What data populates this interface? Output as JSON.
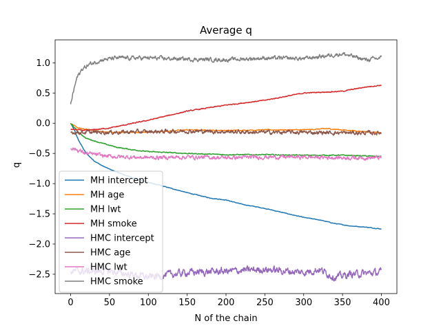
{
  "chart_data": {
    "type": "line",
    "title": "Average q",
    "xlabel": "N of the chain",
    "ylabel": "q",
    "xlim": [
      -20,
      420
    ],
    "ylim": [
      -2.82,
      1.38
    ],
    "xticks": [
      0,
      50,
      100,
      150,
      200,
      250,
      300,
      350,
      400
    ],
    "yticks": [
      -2.5,
      -2.0,
      -1.5,
      -1.0,
      -0.5,
      0.0,
      0.5,
      1.0
    ],
    "ytick_labels": [
      "−2.5",
      "−2.0",
      "−1.5",
      "−1.0",
      "−0.5",
      "0.0",
      "0.5",
      "1.0"
    ],
    "grid": false,
    "legend_position": "lower-left",
    "series": [
      {
        "name": "MH intercept",
        "color": "#1f77b4",
        "noise": 0.004,
        "points": [
          [
            0,
            0.0
          ],
          [
            5,
            -0.12
          ],
          [
            10,
            -0.28
          ],
          [
            20,
            -0.5
          ],
          [
            30,
            -0.62
          ],
          [
            40,
            -0.7
          ],
          [
            50,
            -0.76
          ],
          [
            70,
            -0.86
          ],
          [
            100,
            -0.98
          ],
          [
            130,
            -1.08
          ],
          [
            150,
            -1.15
          ],
          [
            180,
            -1.24
          ],
          [
            200,
            -1.27
          ],
          [
            220,
            -1.34
          ],
          [
            250,
            -1.41
          ],
          [
            280,
            -1.5
          ],
          [
            300,
            -1.56
          ],
          [
            320,
            -1.6
          ],
          [
            340,
            -1.66
          ],
          [
            360,
            -1.7
          ],
          [
            380,
            -1.72
          ],
          [
            400,
            -1.75
          ]
        ]
      },
      {
        "name": "MH age",
        "color": "#ff7f0e",
        "noise": 0.006,
        "points": [
          [
            0,
            0.0
          ],
          [
            10,
            -0.08
          ],
          [
            30,
            -0.12
          ],
          [
            50,
            -0.15
          ],
          [
            100,
            -0.15
          ],
          [
            150,
            -0.11
          ],
          [
            200,
            -0.12
          ],
          [
            250,
            -0.11
          ],
          [
            300,
            -0.11
          ],
          [
            330,
            -0.09
          ],
          [
            360,
            -0.12
          ],
          [
            400,
            -0.16
          ]
        ]
      },
      {
        "name": "MH lwt",
        "color": "#2ca02c",
        "noise": 0.006,
        "points": [
          [
            0,
            0.0
          ],
          [
            10,
            -0.15
          ],
          [
            20,
            -0.25
          ],
          [
            40,
            -0.33
          ],
          [
            60,
            -0.4
          ],
          [
            80,
            -0.44
          ],
          [
            100,
            -0.47
          ],
          [
            150,
            -0.5
          ],
          [
            200,
            -0.52
          ],
          [
            250,
            -0.52
          ],
          [
            300,
            -0.53
          ],
          [
            350,
            -0.53
          ],
          [
            400,
            -0.55
          ]
        ]
      },
      {
        "name": "MH smoke",
        "color": "#d62728",
        "noise": 0.006,
        "points": [
          [
            0,
            -0.1
          ],
          [
            20,
            -0.12
          ],
          [
            50,
            -0.08
          ],
          [
            100,
            0.05
          ],
          [
            150,
            0.2
          ],
          [
            200,
            0.3
          ],
          [
            250,
            0.38
          ],
          [
            300,
            0.5
          ],
          [
            350,
            0.53
          ],
          [
            380,
            0.6
          ],
          [
            400,
            0.63
          ]
        ]
      },
      {
        "name": "HMC intercept",
        "color": "#9467bd",
        "noise": 0.045,
        "points": [
          [
            0,
            -2.45
          ],
          [
            50,
            -2.45
          ],
          [
            100,
            -2.55
          ],
          [
            150,
            -2.47
          ],
          [
            200,
            -2.45
          ],
          [
            250,
            -2.42
          ],
          [
            300,
            -2.47
          ],
          [
            320,
            -2.42
          ],
          [
            340,
            -2.55
          ],
          [
            360,
            -2.5
          ],
          [
            400,
            -2.47
          ]
        ]
      },
      {
        "name": "HMC age",
        "color": "#8c564b",
        "noise": 0.025,
        "points": [
          [
            0,
            -0.15
          ],
          [
            50,
            -0.15
          ],
          [
            100,
            -0.14
          ],
          [
            150,
            -0.13
          ],
          [
            200,
            -0.14
          ],
          [
            250,
            -0.15
          ],
          [
            300,
            -0.15
          ],
          [
            350,
            -0.16
          ],
          [
            400,
            -0.16
          ]
        ]
      },
      {
        "name": "HMC lwt",
        "color": "#e377c2",
        "noise": 0.025,
        "points": [
          [
            0,
            -0.4
          ],
          [
            20,
            -0.5
          ],
          [
            50,
            -0.55
          ],
          [
            100,
            -0.57
          ],
          [
            150,
            -0.56
          ],
          [
            200,
            -0.57
          ],
          [
            250,
            -0.56
          ],
          [
            300,
            -0.56
          ],
          [
            350,
            -0.57
          ],
          [
            400,
            -0.57
          ]
        ]
      },
      {
        "name": "HMC smoke",
        "color": "#7f7f7f",
        "noise": 0.025,
        "points": [
          [
            0,
            0.3
          ],
          [
            3,
            0.5
          ],
          [
            8,
            0.75
          ],
          [
            15,
            0.9
          ],
          [
            25,
            0.98
          ],
          [
            40,
            1.05
          ],
          [
            60,
            1.08
          ],
          [
            100,
            1.08
          ],
          [
            150,
            1.06
          ],
          [
            200,
            1.05
          ],
          [
            250,
            1.08
          ],
          [
            300,
            1.07
          ],
          [
            350,
            1.15
          ],
          [
            380,
            1.05
          ],
          [
            400,
            1.08
          ]
        ]
      }
    ]
  }
}
